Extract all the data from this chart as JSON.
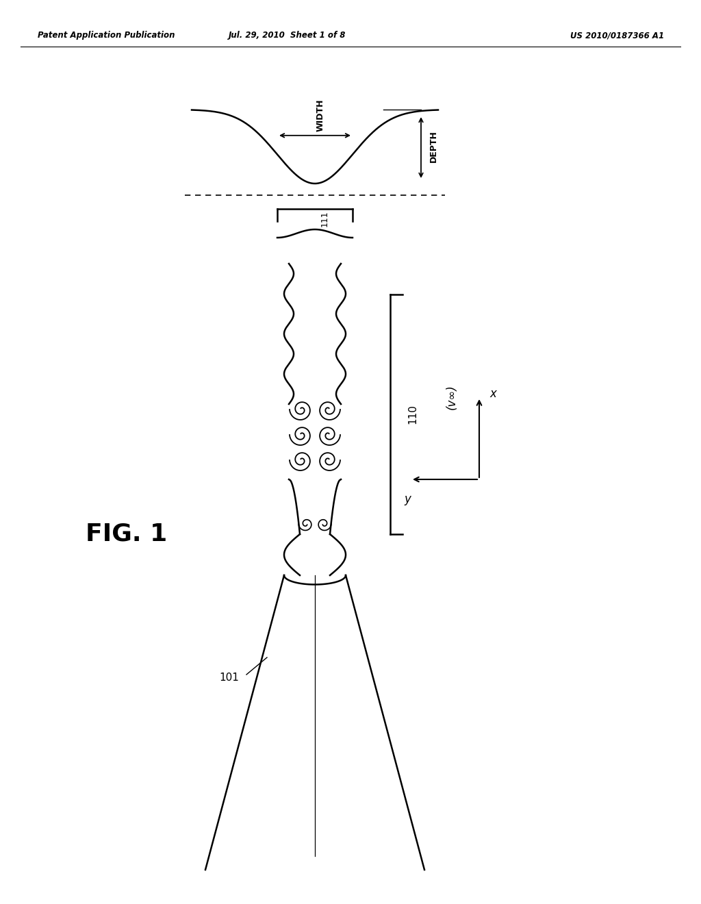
{
  "bg_color": "#ffffff",
  "line_color": "#000000",
  "header_left": "Patent Application Publication",
  "header_mid": "Jul. 29, 2010  Sheet 1 of 8",
  "header_right": "US 2010/0187366 A1",
  "fig_label": "FIG. 1",
  "label_101": "101",
  "label_110": "110",
  "label_111": "111",
  "label_width": "WIDTH",
  "label_depth": "DEPTH",
  "label_x": "x",
  "label_y": "y",
  "label_v_inf": "(v∞)"
}
